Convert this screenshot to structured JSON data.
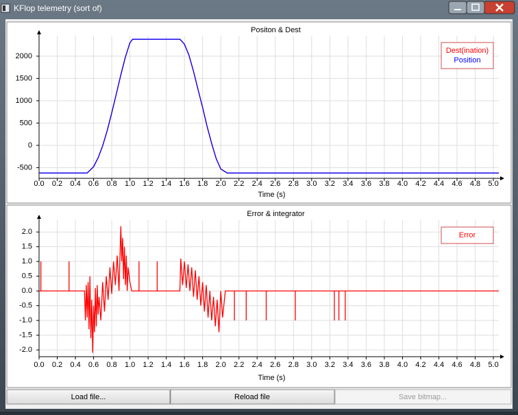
{
  "window": {
    "title": "KFlop telemetry (sort of)"
  },
  "buttons": [
    "Load file...",
    "Reload file",
    "Save bitmap..."
  ],
  "chart_data": [
    {
      "type": "line",
      "title": "Positon & Dest",
      "xlabel": "Time (s)",
      "x": [
        0,
        0.53,
        0.6,
        0.65,
        0.7,
        0.75,
        0.8,
        0.85,
        0.9,
        0.95,
        1.0,
        1.03,
        1.55,
        1.6,
        1.65,
        1.7,
        1.75,
        1.8,
        1.85,
        1.9,
        1.95,
        2.0,
        2.07,
        5.06
      ],
      "series": [
        {
          "name": "Dest(ination)",
          "color": "#ff0000",
          "values": [
            -620,
            -620,
            -480,
            -280,
            -10,
            330,
            730,
            1150,
            1580,
            1980,
            2300,
            2380,
            2380,
            2270,
            2020,
            1660,
            1250,
            850,
            420,
            40,
            -300,
            -530,
            -620,
            -620
          ]
        },
        {
          "name": "Position",
          "color": "#0000ff",
          "values": [
            -620,
            -620,
            -480,
            -280,
            -10,
            330,
            730,
            1150,
            1580,
            1980,
            2300,
            2380,
            2380,
            2270,
            2020,
            1660,
            1250,
            850,
            420,
            40,
            -300,
            -530,
            -620,
            -620
          ]
        }
      ],
      "xlim": [
        0,
        5.06
      ],
      "ylim": [
        -740,
        2460
      ],
      "xticks": [
        {
          "value": 0,
          "label": "0.0"
        },
        0.2,
        0.4,
        0.6,
        0.8,
        {
          "value": 1,
          "label": "1.0"
        },
        1.2,
        1.4,
        1.6,
        1.8,
        {
          "value": 2,
          "label": "2.0"
        },
        2.2,
        2.4,
        2.6,
        2.8,
        {
          "value": 3,
          "label": "3.0"
        },
        3.2,
        3.4,
        3.6,
        3.8,
        {
          "value": 4,
          "label": "4.0"
        },
        4.2,
        4.4,
        4.6,
        4.8,
        {
          "value": 5,
          "label": "5.0"
        }
      ],
      "yticks": [
        -500,
        0,
        500,
        1000,
        1500,
        2000
      ],
      "grid": true,
      "legend": "top-right"
    },
    {
      "type": "line",
      "title": "Error & integrator",
      "xlabel": "Time (s)",
      "x": [
        0,
        0.02,
        0.02,
        0.02,
        0.33,
        0.33,
        0.33,
        0.5,
        0.51,
        0.52,
        0.53,
        0.54,
        0.55,
        0.56,
        0.57,
        0.58,
        0.59,
        0.6,
        0.61,
        0.62,
        0.63,
        0.64,
        0.65,
        0.66,
        0.68,
        0.7,
        0.72,
        0.74,
        0.76,
        0.78,
        0.8,
        0.82,
        0.84,
        0.86,
        0.88,
        0.9,
        0.91,
        0.92,
        0.93,
        0.94,
        0.95,
        0.96,
        0.97,
        0.98,
        1.0,
        1.02,
        1.05,
        1.1,
        1.1,
        1.1,
        1.3,
        1.3,
        1.3,
        1.55,
        1.56,
        1.58,
        1.6,
        1.62,
        1.64,
        1.66,
        1.68,
        1.7,
        1.72,
        1.74,
        1.76,
        1.78,
        1.8,
        1.82,
        1.84,
        1.86,
        1.88,
        1.9,
        1.92,
        1.94,
        1.96,
        1.98,
        2.0,
        2.02,
        2.05,
        2.08,
        2.15,
        2.15,
        2.15,
        2.28,
        2.28,
        2.28,
        2.5,
        2.5,
        2.5,
        2.82,
        2.82,
        2.82,
        3.25,
        3.25,
        3.25,
        3.3,
        3.3,
        3.3,
        3.37,
        3.37,
        3.37,
        5.06
      ],
      "series": [
        {
          "name": "Error",
          "color": "#ff0000",
          "values": [
            0,
            0,
            1,
            0,
            0,
            1,
            0,
            0,
            -1,
            0.2,
            -0.9,
            0.3,
            -1.3,
            0.5,
            -1.6,
            -0.3,
            -2.1,
            -0.5,
            -1.4,
            0.1,
            -1.2,
            0.2,
            -0.8,
            -0.2,
            -1.0,
            0.3,
            -0.7,
            0.5,
            -0.3,
            0.8,
            -0.1,
            1.0,
            0.2,
            1.2,
            0.0,
            2.2,
            1.0,
            1.8,
            0.4,
            1.5,
            0.2,
            1.2,
            0.0,
            0.8,
            0.3,
            0.0,
            0.0,
            0,
            1,
            0,
            0,
            1,
            0,
            0,
            1.1,
            0.2,
            1.0,
            0.1,
            0.9,
            0.0,
            0.8,
            -0.2,
            0.7,
            -0.3,
            0.5,
            -0.5,
            0.3,
            -0.7,
            0.2,
            -0.9,
            0.0,
            -1.0,
            -0.2,
            -1.2,
            -0.3,
            -1.4,
            0.0,
            -0.9,
            0.0,
            0.0,
            0,
            -1,
            0,
            0,
            -1,
            0,
            0,
            -1,
            0,
            0,
            -1,
            0,
            0,
            -1,
            0,
            0,
            -1,
            0,
            0,
            -1,
            0,
            0
          ]
        }
      ],
      "xlim": [
        0,
        5.06
      ],
      "ylim": [
        -2.23,
        2.4
      ],
      "xticks": [
        {
          "value": 0,
          "label": "0.0"
        },
        0.2,
        0.4,
        0.6,
        0.8,
        {
          "value": 1,
          "label": "1.0"
        },
        1.2,
        1.4,
        1.6,
        1.8,
        {
          "value": 2,
          "label": "2.0"
        },
        2.2,
        2.4,
        2.6,
        2.8,
        {
          "value": 3,
          "label": "3.0"
        },
        3.2,
        3.4,
        3.6,
        3.8,
        {
          "value": 4,
          "label": "4.0"
        },
        4.2,
        4.4,
        4.6,
        4.8,
        {
          "value": 5,
          "label": "5.0"
        }
      ],
      "yticks": [
        {
          "value": -2,
          "label": "-2.0"
        },
        -1.5,
        {
          "value": -1,
          "label": "-1.0"
        },
        -0.5,
        {
          "value": 0,
          "label": "0.0"
        },
        0.5,
        {
          "value": 1,
          "label": "1.0"
        },
        1.5,
        {
          "value": 2,
          "label": "2.0"
        }
      ],
      "grid": true,
      "legend": "top-right"
    }
  ]
}
